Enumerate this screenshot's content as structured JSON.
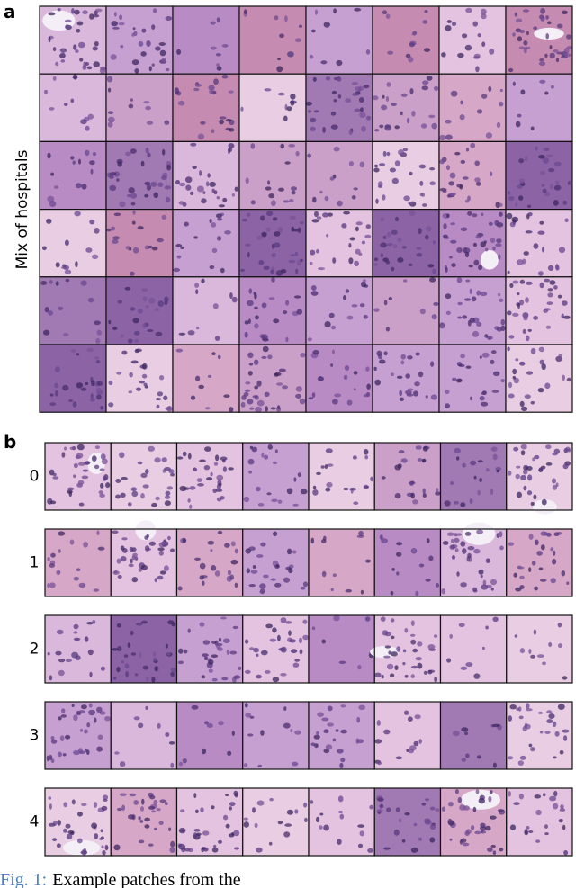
{
  "panel_a": {
    "label": "a",
    "ylabel": "Mix of hospitals"
  },
  "panel_b": {
    "label": "b",
    "rows": [
      {
        "label": "0"
      },
      {
        "label": "1"
      },
      {
        "label": "2"
      },
      {
        "label": "3"
      },
      {
        "label": "4"
      }
    ]
  },
  "caption": {
    "prefix": "Fig. 1:",
    "text": "Example patches from the"
  }
}
